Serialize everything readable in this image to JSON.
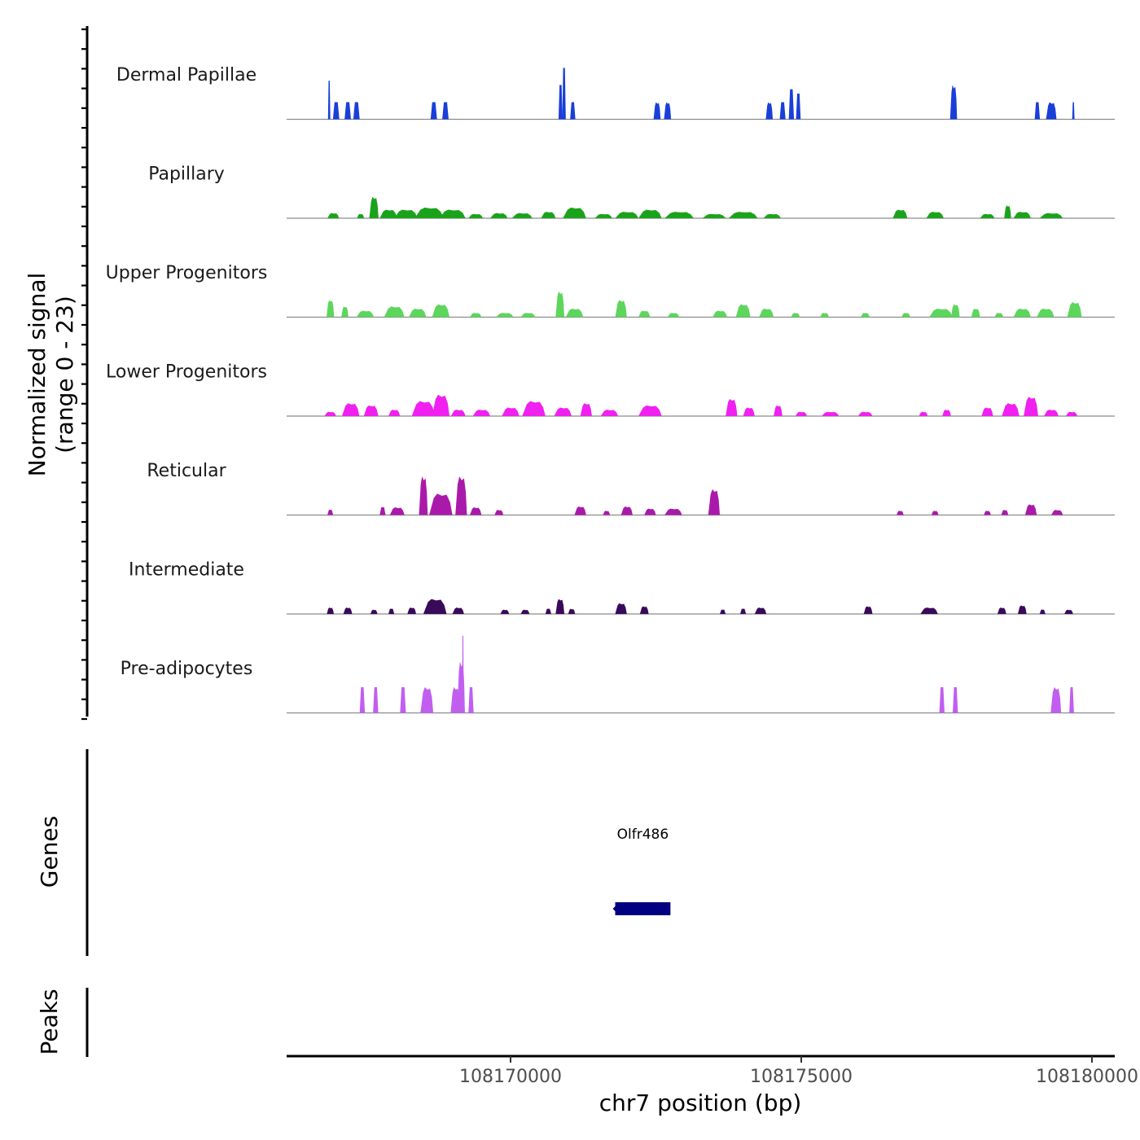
{
  "chart_data": {
    "type": "area",
    "title": "",
    "ylabel_line1": "Normalized signal",
    "ylabel_line2": "(range 0 - 23)",
    "ylim": [
      0,
      23
    ],
    "xlabel": "chr7 position (bp)",
    "xlim": [
      108166200,
      108180000
    ],
    "xticks": [
      108170000,
      108175000,
      108180000
    ],
    "tick_labels": [
      "108170000",
      "108175000",
      "108180000"
    ],
    "tracks": [
      {
        "name": "Dermal Papillae",
        "color": "#1a3fd9",
        "peaks": [
          [
            108166880,
            40,
            9
          ],
          [
            108167000,
            110,
            4
          ],
          [
            108167200,
            110,
            4
          ],
          [
            108167350,
            110,
            4
          ],
          [
            108168680,
            110,
            4
          ],
          [
            108168880,
            110,
            4
          ],
          [
            108170860,
            70,
            8
          ],
          [
            108170920,
            60,
            12
          ],
          [
            108171070,
            90,
            4
          ],
          [
            108172520,
            120,
            4
          ],
          [
            108172700,
            120,
            4
          ],
          [
            108174450,
            120,
            4
          ],
          [
            108174680,
            100,
            4
          ],
          [
            108174830,
            90,
            7
          ],
          [
            108174950,
            80,
            6
          ],
          [
            108177620,
            120,
            8
          ],
          [
            108179060,
            90,
            4
          ],
          [
            108179300,
            180,
            4
          ],
          [
            108179680,
            40,
            4
          ]
        ]
      },
      {
        "name": "Papillary",
        "color": "#1aa31a",
        "peaks": [
          [
            108166950,
            200,
            1.2
          ],
          [
            108167420,
            120,
            1
          ],
          [
            108167650,
            160,
            5
          ],
          [
            108167900,
            300,
            2
          ],
          [
            108168200,
            400,
            2
          ],
          [
            108168600,
            500,
            2.5
          ],
          [
            108169000,
            450,
            2
          ],
          [
            108169400,
            250,
            1
          ],
          [
            108169800,
            300,
            1.2
          ],
          [
            108170200,
            350,
            1.2
          ],
          [
            108170650,
            250,
            1.5
          ],
          [
            108171100,
            400,
            2.5
          ],
          [
            108171600,
            300,
            1
          ],
          [
            108172000,
            400,
            1.5
          ],
          [
            108172400,
            400,
            2
          ],
          [
            108172900,
            500,
            1.5
          ],
          [
            108173500,
            400,
            1
          ],
          [
            108174000,
            500,
            1.5
          ],
          [
            108174500,
            300,
            1
          ],
          [
            108176700,
            250,
            2
          ],
          [
            108177300,
            300,
            1.5
          ],
          [
            108178200,
            250,
            1
          ],
          [
            108178550,
            120,
            3
          ],
          [
            108178800,
            300,
            1.5
          ],
          [
            108179300,
            400,
            1.2
          ]
        ]
      },
      {
        "name": "Upper Progenitors",
        "color": "#5cd65c",
        "peaks": [
          [
            108166900,
            130,
            4
          ],
          [
            108167150,
            120,
            2.5
          ],
          [
            108167500,
            300,
            1.5
          ],
          [
            108168000,
            350,
            2.5
          ],
          [
            108168400,
            300,
            2
          ],
          [
            108168800,
            300,
            3
          ],
          [
            108169400,
            200,
            1
          ],
          [
            108169900,
            300,
            1
          ],
          [
            108170300,
            250,
            1
          ],
          [
            108170850,
            150,
            6
          ],
          [
            108171100,
            300,
            2
          ],
          [
            108171900,
            200,
            4
          ],
          [
            108172300,
            200,
            1.5
          ],
          [
            108172800,
            200,
            1
          ],
          [
            108173600,
            250,
            1.5
          ],
          [
            108174000,
            250,
            3
          ],
          [
            108174400,
            250,
            2
          ],
          [
            108174900,
            150,
            1
          ],
          [
            108175400,
            150,
            1
          ],
          [
            108176100,
            150,
            1
          ],
          [
            108176800,
            150,
            1
          ],
          [
            108177400,
            400,
            2
          ],
          [
            108177650,
            150,
            3
          ],
          [
            108178000,
            150,
            2
          ],
          [
            108178400,
            150,
            1
          ],
          [
            108178800,
            300,
            2
          ],
          [
            108179200,
            300,
            2
          ],
          [
            108179700,
            250,
            3.5
          ]
        ]
      },
      {
        "name": "Lower Progenitors",
        "color": "#f020f0",
        "peaks": [
          [
            108166900,
            200,
            1
          ],
          [
            108167250,
            300,
            3
          ],
          [
            108167600,
            250,
            2.5
          ],
          [
            108168000,
            200,
            1.5
          ],
          [
            108168500,
            400,
            3.5
          ],
          [
            108168800,
            300,
            5
          ],
          [
            108169100,
            250,
            1.5
          ],
          [
            108169500,
            300,
            1.5
          ],
          [
            108170000,
            300,
            2
          ],
          [
            108170400,
            400,
            3.5
          ],
          [
            108170900,
            300,
            2
          ],
          [
            108171300,
            200,
            3
          ],
          [
            108171700,
            300,
            1.5
          ],
          [
            108172400,
            400,
            2.5
          ],
          [
            108173800,
            200,
            4
          ],
          [
            108174100,
            200,
            2
          ],
          [
            108174600,
            150,
            2.5
          ],
          [
            108175000,
            200,
            1
          ],
          [
            108175500,
            300,
            1
          ],
          [
            108176100,
            250,
            1
          ],
          [
            108177100,
            150,
            1
          ],
          [
            108177500,
            150,
            1.5
          ],
          [
            108178200,
            200,
            2
          ],
          [
            108178600,
            300,
            3
          ],
          [
            108178950,
            250,
            4.5
          ],
          [
            108179300,
            250,
            1.5
          ],
          [
            108179650,
            200,
            1
          ]
        ]
      },
      {
        "name": "Reticular",
        "color": "#aa1aaa",
        "peaks": [
          [
            108166900,
            100,
            1.2
          ],
          [
            108167800,
            100,
            1.8
          ],
          [
            108168050,
            250,
            1.8
          ],
          [
            108168500,
            150,
            9
          ],
          [
            108168800,
            400,
            5
          ],
          [
            108169150,
            200,
            9
          ],
          [
            108169400,
            200,
            1.8
          ],
          [
            108169800,
            150,
            1.2
          ],
          [
            108171200,
            200,
            2
          ],
          [
            108171650,
            120,
            1
          ],
          [
            108172000,
            200,
            2
          ],
          [
            108172400,
            200,
            1.5
          ],
          [
            108172800,
            300,
            1.5
          ],
          [
            108173500,
            200,
            6
          ],
          [
            108176700,
            120,
            1
          ],
          [
            108177300,
            120,
            1
          ],
          [
            108178200,
            120,
            1
          ],
          [
            108178500,
            120,
            1.2
          ],
          [
            108178950,
            200,
            2.5
          ],
          [
            108179400,
            200,
            1.2
          ]
        ]
      },
      {
        "name": "Intermediate",
        "color": "#3a0a5a",
        "peaks": [
          [
            108166900,
            120,
            1.5
          ],
          [
            108167200,
            150,
            1.5
          ],
          [
            108167650,
            120,
            1
          ],
          [
            108167950,
            100,
            1.2
          ],
          [
            108168300,
            150,
            1.5
          ],
          [
            108168700,
            400,
            3.5
          ],
          [
            108169100,
            200,
            1.5
          ],
          [
            108169900,
            150,
            1
          ],
          [
            108170250,
            150,
            1
          ],
          [
            108170650,
            100,
            1.2
          ],
          [
            108170850,
            150,
            3.5
          ],
          [
            108171050,
            120,
            1.2
          ],
          [
            108171900,
            200,
            2.5
          ],
          [
            108172300,
            150,
            1.8
          ],
          [
            108173650,
            100,
            1
          ],
          [
            108174000,
            100,
            1.2
          ],
          [
            108174300,
            200,
            1.5
          ],
          [
            108176150,
            150,
            1.8
          ],
          [
            108177200,
            300,
            1.5
          ],
          [
            108178450,
            150,
            1.5
          ],
          [
            108178800,
            150,
            2
          ],
          [
            108179150,
            100,
            1
          ],
          [
            108179600,
            150,
            1
          ]
        ]
      },
      {
        "name": "Pre-adipocytes",
        "color": "#c15ef0",
        "peaks": [
          [
            108167450,
            90,
            6
          ],
          [
            108167680,
            90,
            6
          ],
          [
            108168150,
            100,
            6
          ],
          [
            108168560,
            220,
            6
          ],
          [
            108169050,
            160,
            6
          ],
          [
            108169150,
            130,
            12
          ],
          [
            108169180,
            30,
            18
          ],
          [
            108169320,
            90,
            6
          ],
          [
            108177420,
            90,
            6
          ],
          [
            108177650,
            90,
            6
          ],
          [
            108179380,
            180,
            6
          ],
          [
            108179650,
            80,
            6
          ]
        ]
      }
    ],
    "genes": [
      {
        "name": "Olfr486",
        "start": 108171800,
        "end": 108172750,
        "strand": "-",
        "color": "#000080"
      }
    ],
    "side_panels": [
      "Genes",
      "Peaks"
    ]
  }
}
